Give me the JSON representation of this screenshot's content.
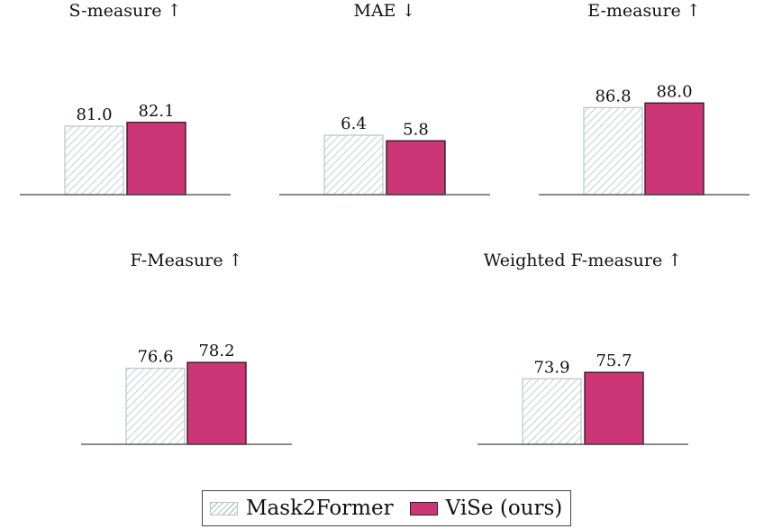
{
  "colors": {
    "mask2former": "#b6c7c4",
    "vise": "#cc3676",
    "vise_edge": "#3a1a2a",
    "axis": "#444444"
  },
  "legend": {
    "placement": "bottom-center",
    "mask2former": "Mask2Former",
    "vise": "ViSe (ours)"
  },
  "chart_data": [
    {
      "type": "bar",
      "title": "S-measure ↑",
      "categories": [
        "Mask2Former",
        "ViSe (ours)"
      ],
      "values": [
        81.0,
        82.1
      ],
      "labels": [
        "81.0",
        "82.1"
      ],
      "grid": false
    },
    {
      "type": "bar",
      "title": "MAE ↓",
      "categories": [
        "Mask2Former",
        "ViSe (ours)"
      ],
      "values": [
        6.4,
        5.8
      ],
      "labels": [
        "6.4",
        "5.8"
      ],
      "grid": false
    },
    {
      "type": "bar",
      "title": "E-measure ↑",
      "categories": [
        "Mask2Former",
        "ViSe (ours)"
      ],
      "values": [
        86.8,
        88.0
      ],
      "labels": [
        "86.8",
        "88.0"
      ],
      "grid": false
    },
    {
      "type": "bar",
      "title": "F-Measure ↑",
      "categories": [
        "Mask2Former",
        "ViSe (ours)"
      ],
      "values": [
        76.6,
        78.2
      ],
      "labels": [
        "76.6",
        "78.2"
      ],
      "grid": false
    },
    {
      "type": "bar",
      "title": "Weighted F-measure ↑",
      "categories": [
        "Mask2Former",
        "ViSe (ours)"
      ],
      "values": [
        73.9,
        75.7
      ],
      "labels": [
        "73.9",
        "75.7"
      ],
      "grid": false
    }
  ]
}
